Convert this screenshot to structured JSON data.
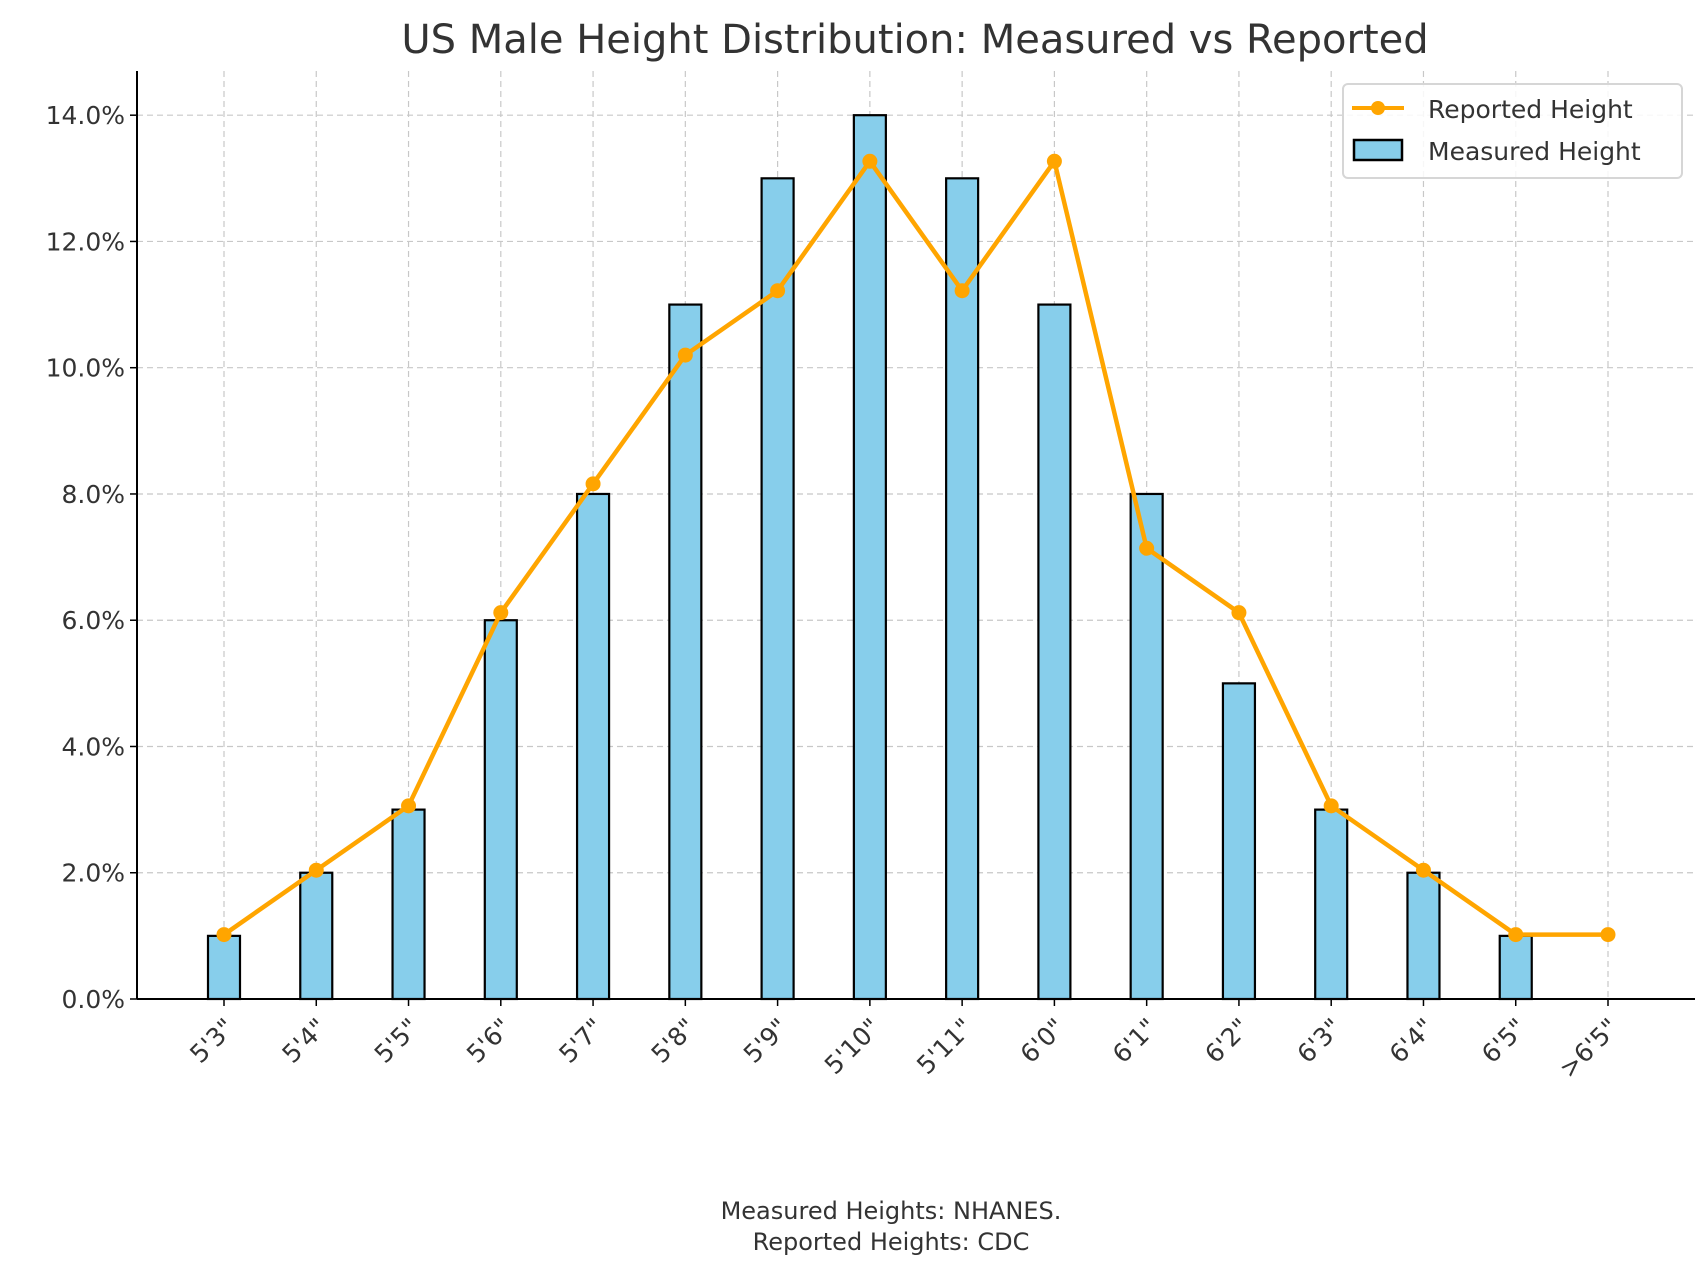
{
  "chart_data": {
    "type": "bar",
    "title": "US Male Height Distribution: Measured vs Reported",
    "xlabel": "",
    "ylabel": "",
    "categories": [
      "5'3\"",
      "5'4\"",
      "5'5\"",
      "5'6\"",
      "5'7\"",
      "5'8\"",
      "5'9\"",
      "5'10\"",
      "5'11\"",
      "6'0\"",
      "6'1\"",
      "6'2\"",
      "6'3\"",
      "6'4\"",
      "6'5\"",
      ">6'5\""
    ],
    "ylim": [
      0,
      14.7
    ],
    "yticks": [
      0,
      2,
      4,
      6,
      8,
      10,
      12,
      14
    ],
    "ytick_labels": [
      "0.0%",
      "2.0%",
      "4.0%",
      "6.0%",
      "8.0%",
      "10.0%",
      "12.0%",
      "14.0%"
    ],
    "grid": true,
    "legend_position": "top-right",
    "series": [
      {
        "name": "Reported Height",
        "type": "line",
        "color": "#FFA500",
        "values": [
          1.02,
          2.04,
          3.06,
          6.12,
          8.16,
          10.2,
          11.22,
          13.27,
          11.22,
          13.27,
          7.14,
          6.12,
          3.06,
          2.04,
          1.02,
          1.02
        ]
      },
      {
        "name": "Measured Height",
        "type": "bar",
        "color": "#87CEEB",
        "values": [
          1,
          2,
          3,
          6,
          8,
          11,
          13,
          14,
          13,
          11,
          8,
          5,
          3,
          2,
          1,
          0
        ]
      }
    ],
    "annotation": [
      "Measured Heights: NHANES.",
      "Reported Heights: CDC"
    ]
  }
}
